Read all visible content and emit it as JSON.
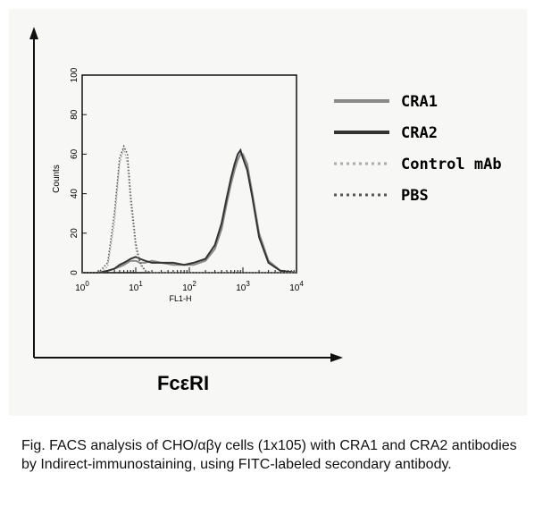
{
  "chart_data": {
    "type": "line",
    "title": "FcεRI",
    "caption": "Fig. FACS analysis of CHO/αβγ cells (1x105) with CRA1 and CRA2 antibodies by Indirect-immunostaining, using FITC-labeled secondary antibody.",
    "x_label": "FL1-H",
    "y_label": "Counts",
    "log_x": true,
    "xlim": [
      1,
      10000
    ],
    "xticks": [
      {
        "value": 1,
        "label": "10",
        "sup": "0"
      },
      {
        "value": 10,
        "label": "10",
        "sup": "1"
      },
      {
        "value": 100,
        "label": "10",
        "sup": "2"
      },
      {
        "value": 1000,
        "label": "10",
        "sup": "3"
      },
      {
        "value": 10000,
        "label": "10",
        "sup": "4"
      }
    ],
    "ylim": [
      0,
      100
    ],
    "yticks": [
      0,
      20,
      40,
      60,
      80,
      100
    ],
    "x": [
      1,
      1.5,
      2,
      3,
      4,
      5,
      6,
      7,
      8,
      10,
      12,
      15,
      20,
      30,
      50,
      80,
      120,
      200,
      300,
      400,
      500,
      600,
      700,
      800,
      900,
      1000,
      1200,
      1500,
      2000,
      3000,
      5000,
      10000
    ],
    "series": [
      {
        "name": "CRA1",
        "color": "#8a8a8a",
        "dash": "solid",
        "values": [
          0,
          0,
          0,
          1,
          2,
          3,
          4,
          5,
          6,
          6,
          5,
          5,
          6,
          5,
          4,
          4,
          4,
          6,
          12,
          22,
          35,
          45,
          52,
          57,
          60,
          60,
          55,
          40,
          20,
          6,
          1,
          0
        ]
      },
      {
        "name": "CRA2",
        "color": "#333333",
        "dash": "solid",
        "values": [
          0,
          0,
          0,
          1,
          2,
          4,
          5,
          6,
          7,
          8,
          7,
          6,
          5,
          5,
          5,
          4,
          5,
          7,
          14,
          25,
          38,
          48,
          55,
          60,
          62,
          58,
          52,
          38,
          18,
          5,
          1,
          0
        ]
      },
      {
        "name": "Control mAb",
        "color": "#aaaaaa",
        "dash": "dotted",
        "values": [
          0,
          0,
          0,
          3,
          25,
          55,
          63,
          55,
          35,
          12,
          4,
          1,
          0,
          0,
          0,
          0,
          0,
          0,
          0,
          0,
          0,
          0,
          0,
          0,
          0,
          0,
          0,
          0,
          0,
          0,
          0,
          0
        ]
      },
      {
        "name": "PBS",
        "color": "#555555",
        "dash": "dotted",
        "values": [
          0,
          0,
          0,
          5,
          30,
          58,
          64,
          60,
          40,
          15,
          5,
          1,
          0,
          0,
          0,
          0,
          0,
          0,
          0,
          0,
          0,
          0,
          0,
          0,
          0,
          0,
          0,
          0,
          0,
          0,
          0,
          0
        ]
      }
    ]
  }
}
